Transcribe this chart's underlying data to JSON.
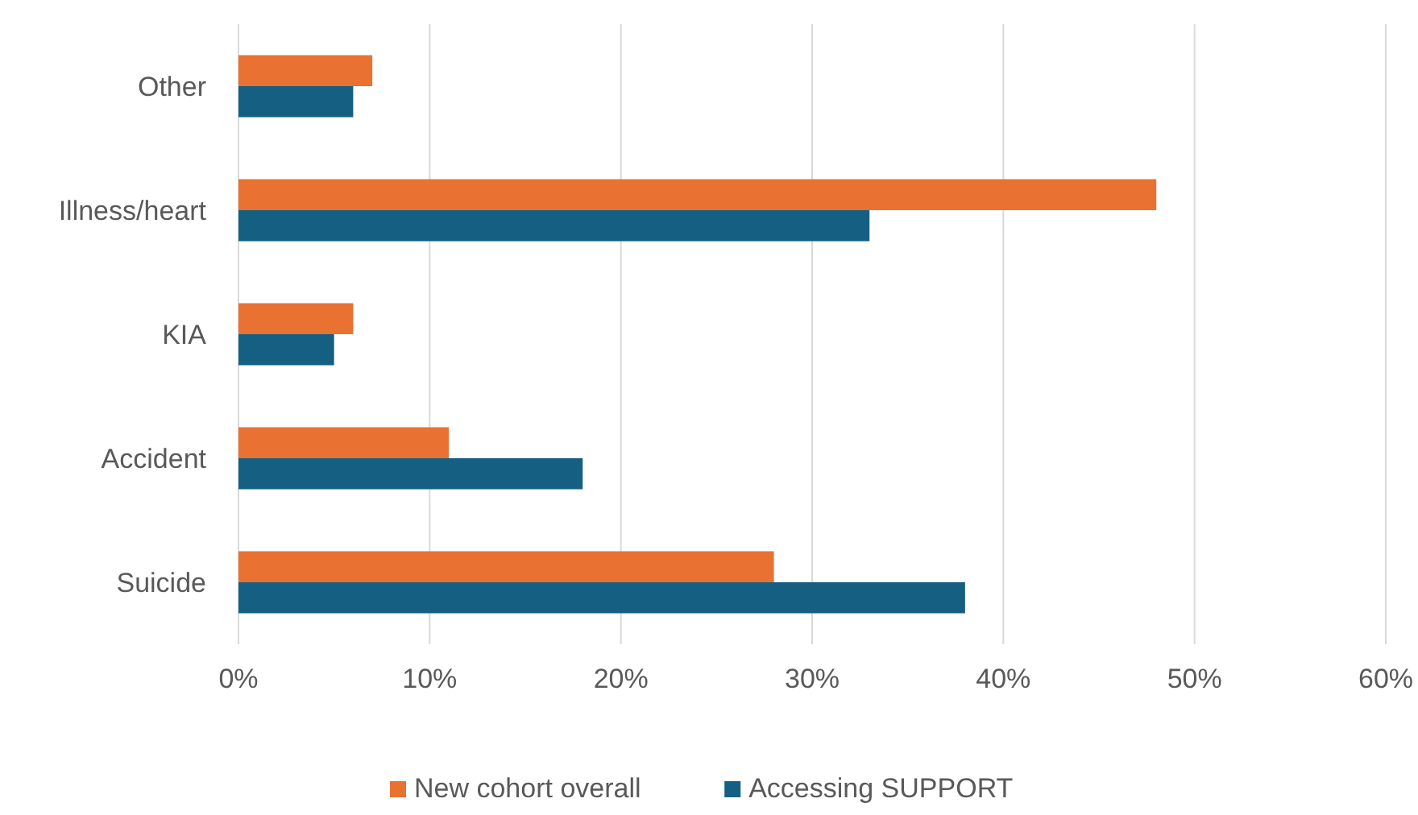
{
  "chart_data": {
    "type": "bar",
    "orientation": "horizontal",
    "categories": [
      "Other",
      "Illness/heart",
      "KIA",
      "Accident",
      "Suicide"
    ],
    "series": [
      {
        "name": "New cohort overall",
        "color": "#e97132",
        "values": [
          7,
          48,
          6,
          11,
          28
        ]
      },
      {
        "name": "Accessing SUPPORT",
        "color": "#156082",
        "values": [
          6,
          33,
          5,
          18,
          38
        ]
      }
    ],
    "xlim": [
      0,
      60
    ],
    "xticks": [
      {
        "value": 0,
        "label": "0%"
      },
      {
        "value": 10,
        "label": "10%"
      },
      {
        "value": 20,
        "label": "20%"
      },
      {
        "value": 30,
        "label": "30%"
      },
      {
        "value": 40,
        "label": "40%"
      },
      {
        "value": 50,
        "label": "50%"
      },
      {
        "value": 60,
        "label": "60%"
      }
    ],
    "grid": "x",
    "legend": "bottom"
  }
}
